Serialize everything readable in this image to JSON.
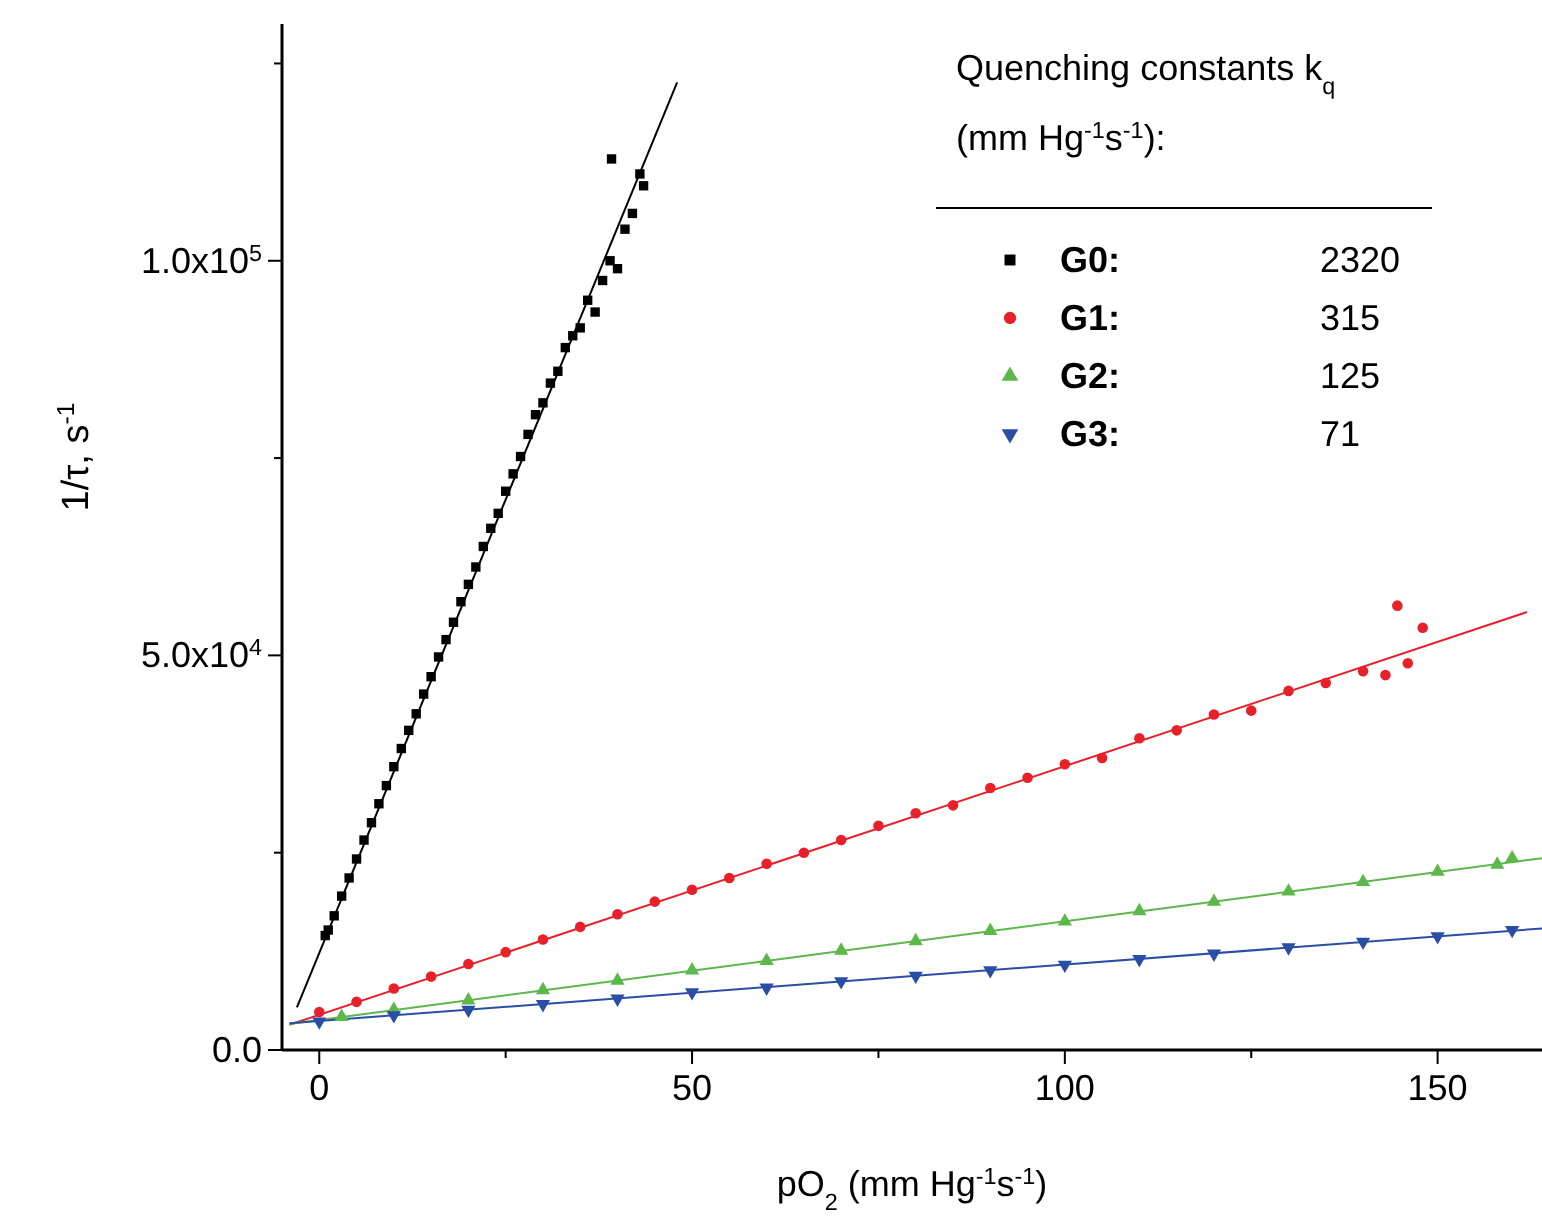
{
  "chart_data": {
    "type": "scatter",
    "xlabel": "pO$_{2}$ (mm Hg$^{-1}$s$^{-1}$)",
    "ylabel": "1/τ, s$^{-1}$",
    "legend_title": "Quenching constants k$_{q}$ (mm Hg$^{-1}$s$^{-1}$):",
    "legend": "top right",
    "xlim": [
      -5,
      164
    ],
    "ylim": [
      0,
      130000
    ],
    "xticks": [
      0,
      {
        "value": 25,
        "label": null
      },
      50,
      {
        "value": 75,
        "label": null
      },
      100,
      {
        "value": 125,
        "label": null
      },
      150
    ],
    "yticks": [
      {
        "value": 0,
        "label": "0.0"
      },
      {
        "value": 25000,
        "label": null
      },
      {
        "value": 50000,
        "label": "5.0x10$^{4}$"
      },
      {
        "value": 75000,
        "label": null
      },
      {
        "value": 100000,
        "label": "1.0x10$^{5}$"
      },
      {
        "value": 125000,
        "label": null
      }
    ],
    "annotations": [
      "2320",
      "315",
      "125",
      "71"
    ],
    "series": [
      {
        "name": "G0:",
        "color": "#000000",
        "marker": "square",
        "x": [
          0.8,
          1.2,
          2,
          3,
          4,
          5,
          6,
          7,
          8,
          9,
          10,
          11,
          12,
          13,
          14,
          15,
          16,
          17,
          18,
          19,
          20,
          21,
          22,
          23,
          24,
          25,
          26,
          27,
          28,
          29,
          30,
          31,
          32,
          33,
          34,
          35,
          36,
          37,
          38,
          39,
          39.2,
          40,
          41,
          42,
          43,
          43.5
        ],
        "values": [
          14500,
          15200,
          17000,
          19500,
          21800,
          24200,
          26600,
          28800,
          31200,
          33500,
          35900,
          38200,
          40500,
          42600,
          45100,
          47300,
          49800,
          52000,
          54200,
          56800,
          59000,
          61200,
          63800,
          66100,
          68000,
          70800,
          73000,
          75200,
          78000,
          80500,
          82000,
          84500,
          86000,
          89000,
          90500,
          91500,
          95000,
          93500,
          97500,
          100000,
          112900,
          99000,
          104000,
          106000,
          111000,
          109500
        ]
      },
      {
        "name": "G1:",
        "color": "#e8202a",
        "marker": "circle",
        "x": [
          0,
          5,
          10,
          15,
          20,
          25,
          30,
          35,
          40,
          45,
          50,
          55,
          60,
          65,
          70,
          75,
          80,
          85,
          90,
          95,
          100,
          105,
          110,
          115,
          120,
          125,
          130,
          135,
          140,
          143,
          144.6,
          146,
          148
        ],
        "values": [
          4800,
          6100,
          7800,
          9300,
          10900,
          12400,
          14000,
          15600,
          17200,
          18800,
          20300,
          21800,
          23600,
          25000,
          26600,
          28400,
          30000,
          31000,
          33200,
          34500,
          36200,
          37000,
          39500,
          40500,
          42500,
          43000,
          45500,
          46500,
          48000,
          47500,
          56300,
          49000,
          53500
        ]
      },
      {
        "name": "G2:",
        "color": "#5cb84a",
        "marker": "triangle",
        "x": [
          3,
          10,
          20,
          30,
          40,
          50,
          60,
          70,
          80,
          90,
          100,
          110,
          120,
          130,
          140,
          150,
          158,
          160
        ],
        "values": [
          4200,
          5100,
          6300,
          7600,
          8800,
          10100,
          11300,
          12600,
          13800,
          15100,
          16300,
          17600,
          18800,
          20100,
          21300,
          22600,
          23500,
          24300
        ]
      },
      {
        "name": "G3:",
        "color": "#2a4ea6",
        "marker": "triangle-down",
        "x": [
          0,
          10,
          20,
          30,
          40,
          50,
          60,
          70,
          80,
          90,
          100,
          110,
          120,
          130,
          140,
          150,
          160
        ],
        "values": [
          3600,
          4400,
          5100,
          5800,
          6500,
          7300,
          7900,
          8700,
          9400,
          10100,
          10800,
          11500,
          12200,
          13000,
          13700,
          14400,
          15200
        ]
      },
      {
        "type": "line",
        "color": "#000000",
        "x": [
          -3,
          48
        ],
        "values": [
          5400,
          122600
        ]
      },
      {
        "type": "line",
        "color": "#e8202a",
        "x": [
          -4,
          162
        ],
        "values": [
          3200,
          55500
        ]
      },
      {
        "type": "line",
        "color": "#5cb84a",
        "x": [
          -4,
          164
        ],
        "values": [
          3300,
          24300
        ]
      },
      {
        "type": "line",
        "color": "#2a4ea6",
        "x": [
          -4,
          164
        ],
        "values": [
          3400,
          15400
        ]
      }
    ]
  }
}
